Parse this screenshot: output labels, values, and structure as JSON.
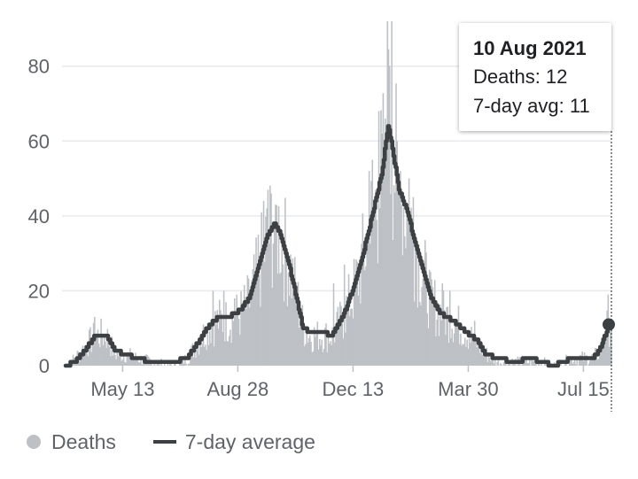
{
  "chart_data": {
    "type": "bar",
    "x_start": "2020-03-21",
    "x_end": "2021-08-10",
    "ylim": [
      0,
      92
    ],
    "yticks": [
      0,
      20,
      40,
      60,
      80
    ],
    "xticks": [
      {
        "date": "2020-05-13",
        "label": "May 13"
      },
      {
        "date": "2020-08-28",
        "label": "Aug 28"
      },
      {
        "date": "2020-12-13",
        "label": "Dec 13"
      },
      {
        "date": "2021-03-30",
        "label": "Mar 30"
      },
      {
        "date": "2021-07-15",
        "label": "Jul 15"
      }
    ],
    "grid": true,
    "legend_position": "bottom-left",
    "series": [
      {
        "name": "Deaths",
        "kind": "bar",
        "color": "#bdc1c6",
        "anchors": [
          [
            "2020-03-21",
            0
          ],
          [
            "2020-03-30",
            2
          ],
          [
            "2020-04-08",
            5
          ],
          [
            "2020-04-18",
            8
          ],
          [
            "2020-04-28",
            8
          ],
          [
            "2020-05-06",
            3
          ],
          [
            "2020-05-16",
            3
          ],
          [
            "2020-05-26",
            2
          ],
          [
            "2020-06-10",
            1
          ],
          [
            "2020-06-30",
            0
          ],
          [
            "2020-07-12",
            2
          ],
          [
            "2020-07-22",
            6
          ],
          [
            "2020-07-31",
            10
          ],
          [
            "2020-08-10",
            12
          ],
          [
            "2020-08-20",
            12
          ],
          [
            "2020-08-31",
            14
          ],
          [
            "2020-09-08",
            17
          ],
          [
            "2020-09-16",
            25
          ],
          [
            "2020-09-24",
            33
          ],
          [
            "2020-10-01",
            38
          ],
          [
            "2020-10-06",
            36
          ],
          [
            "2020-10-15",
            27
          ],
          [
            "2020-10-22",
            18
          ],
          [
            "2020-10-28",
            10
          ],
          [
            "2020-11-03",
            8
          ],
          [
            "2020-11-14",
            8
          ],
          [
            "2020-11-24",
            8
          ],
          [
            "2020-12-04",
            13
          ],
          [
            "2020-12-14",
            20
          ],
          [
            "2020-12-22",
            28
          ],
          [
            "2021-01-01",
            40
          ],
          [
            "2021-01-09",
            50
          ],
          [
            "2021-01-15",
            62
          ],
          [
            "2021-01-19",
            58
          ],
          [
            "2021-01-25",
            46
          ],
          [
            "2021-02-02",
            40
          ],
          [
            "2021-02-09",
            32
          ],
          [
            "2021-02-16",
            25
          ],
          [
            "2021-02-24",
            17
          ],
          [
            "2021-03-05",
            14
          ],
          [
            "2021-03-16",
            12
          ],
          [
            "2021-03-28",
            9
          ],
          [
            "2021-04-07",
            6
          ],
          [
            "2021-04-16",
            3
          ],
          [
            "2021-04-27",
            1
          ],
          [
            "2021-05-12",
            1
          ],
          [
            "2021-05-27",
            1
          ],
          [
            "2021-06-07",
            1
          ],
          [
            "2021-06-17",
            0
          ],
          [
            "2021-06-27",
            1
          ],
          [
            "2021-07-05",
            2
          ],
          [
            "2021-07-23",
            2
          ],
          [
            "2021-07-28",
            3
          ],
          [
            "2021-08-02",
            6
          ],
          [
            "2021-08-06",
            10
          ],
          [
            "2021-08-10",
            12
          ]
        ],
        "spikes": [
          [
            "2021-01-14",
            92
          ],
          [
            "2021-01-18",
            92
          ],
          [
            "2021-01-16",
            80
          ],
          [
            "2021-01-12",
            66
          ],
          [
            "2021-01-06",
            68
          ],
          [
            "2020-12-28",
            52
          ],
          [
            "2020-12-31",
            55
          ],
          [
            "2021-01-23",
            60
          ],
          [
            "2021-01-26",
            52
          ],
          [
            "2021-02-03",
            50
          ],
          [
            "2021-02-07",
            45
          ],
          [
            "2020-09-21",
            44
          ],
          [
            "2020-09-25",
            47
          ],
          [
            "2020-09-28",
            46
          ],
          [
            "2020-10-02",
            43
          ],
          [
            "2020-09-16",
            35
          ],
          [
            "2020-08-05",
            20
          ],
          [
            "2020-08-15",
            20
          ],
          [
            "2020-08-25",
            18
          ],
          [
            "2020-04-17",
            13
          ],
          [
            "2020-12-05",
            27
          ],
          [
            "2020-11-25",
            22
          ],
          [
            "2021-03-06",
            22
          ],
          [
            "2021-03-13",
            20
          ],
          [
            "2021-02-23",
            25
          ],
          [
            "2021-08-07",
            19
          ],
          [
            "2020-10-19",
            22
          ],
          [
            "2021-04-05",
            12
          ]
        ]
      },
      {
        "name": "7-day average",
        "kind": "line",
        "color": "#3c4043",
        "step": true,
        "points": [
          [
            "2020-03-21",
            0
          ],
          [
            "2020-03-30",
            1
          ],
          [
            "2020-04-08",
            4
          ],
          [
            "2020-04-18",
            8
          ],
          [
            "2020-04-28",
            8
          ],
          [
            "2020-05-06",
            4
          ],
          [
            "2020-05-16",
            3
          ],
          [
            "2020-05-26",
            2
          ],
          [
            "2020-06-10",
            1
          ],
          [
            "2020-06-30",
            1
          ],
          [
            "2020-07-12",
            2
          ],
          [
            "2020-07-22",
            6
          ],
          [
            "2020-07-31",
            10
          ],
          [
            "2020-08-10",
            13
          ],
          [
            "2020-08-20",
            13
          ],
          [
            "2020-08-31",
            15
          ],
          [
            "2020-09-08",
            18
          ],
          [
            "2020-09-16",
            26
          ],
          [
            "2020-09-24",
            34
          ],
          [
            "2020-10-01",
            38
          ],
          [
            "2020-10-06",
            36
          ],
          [
            "2020-10-15",
            27
          ],
          [
            "2020-10-22",
            18
          ],
          [
            "2020-10-28",
            10
          ],
          [
            "2020-11-03",
            9
          ],
          [
            "2020-11-14",
            9
          ],
          [
            "2020-11-24",
            8
          ],
          [
            "2020-12-04",
            13
          ],
          [
            "2020-12-14",
            21
          ],
          [
            "2020-12-22",
            29
          ],
          [
            "2021-01-01",
            41
          ],
          [
            "2021-01-09",
            51
          ],
          [
            "2021-01-15",
            64
          ],
          [
            "2021-01-19",
            58
          ],
          [
            "2021-01-25",
            47
          ],
          [
            "2021-02-02",
            41
          ],
          [
            "2021-02-09",
            33
          ],
          [
            "2021-02-16",
            26
          ],
          [
            "2021-02-24",
            18
          ],
          [
            "2021-03-05",
            14
          ],
          [
            "2021-03-16",
            12
          ],
          [
            "2021-03-28",
            9
          ],
          [
            "2021-04-07",
            7
          ],
          [
            "2021-04-16",
            3
          ],
          [
            "2021-04-27",
            2
          ],
          [
            "2021-05-12",
            1
          ],
          [
            "2021-05-27",
            2
          ],
          [
            "2021-06-07",
            1
          ],
          [
            "2021-06-17",
            0
          ],
          [
            "2021-06-27",
            1
          ],
          [
            "2021-07-05",
            2
          ],
          [
            "2021-07-23",
            2
          ],
          [
            "2021-07-28",
            3
          ],
          [
            "2021-08-02",
            6
          ],
          [
            "2021-08-06",
            9
          ],
          [
            "2021-08-10",
            11
          ]
        ]
      }
    ],
    "highlight": {
      "date": "2021-08-10",
      "value": 11
    }
  },
  "tooltip": {
    "title": "10 Aug 2021",
    "deaths_text": "Deaths: 12",
    "avg_text": "7-day avg: 11"
  },
  "legend": {
    "deaths_label": "Deaths",
    "avg_label": "7-day average",
    "deaths_color": "#bdc1c6",
    "avg_color": "#3c4043"
  }
}
